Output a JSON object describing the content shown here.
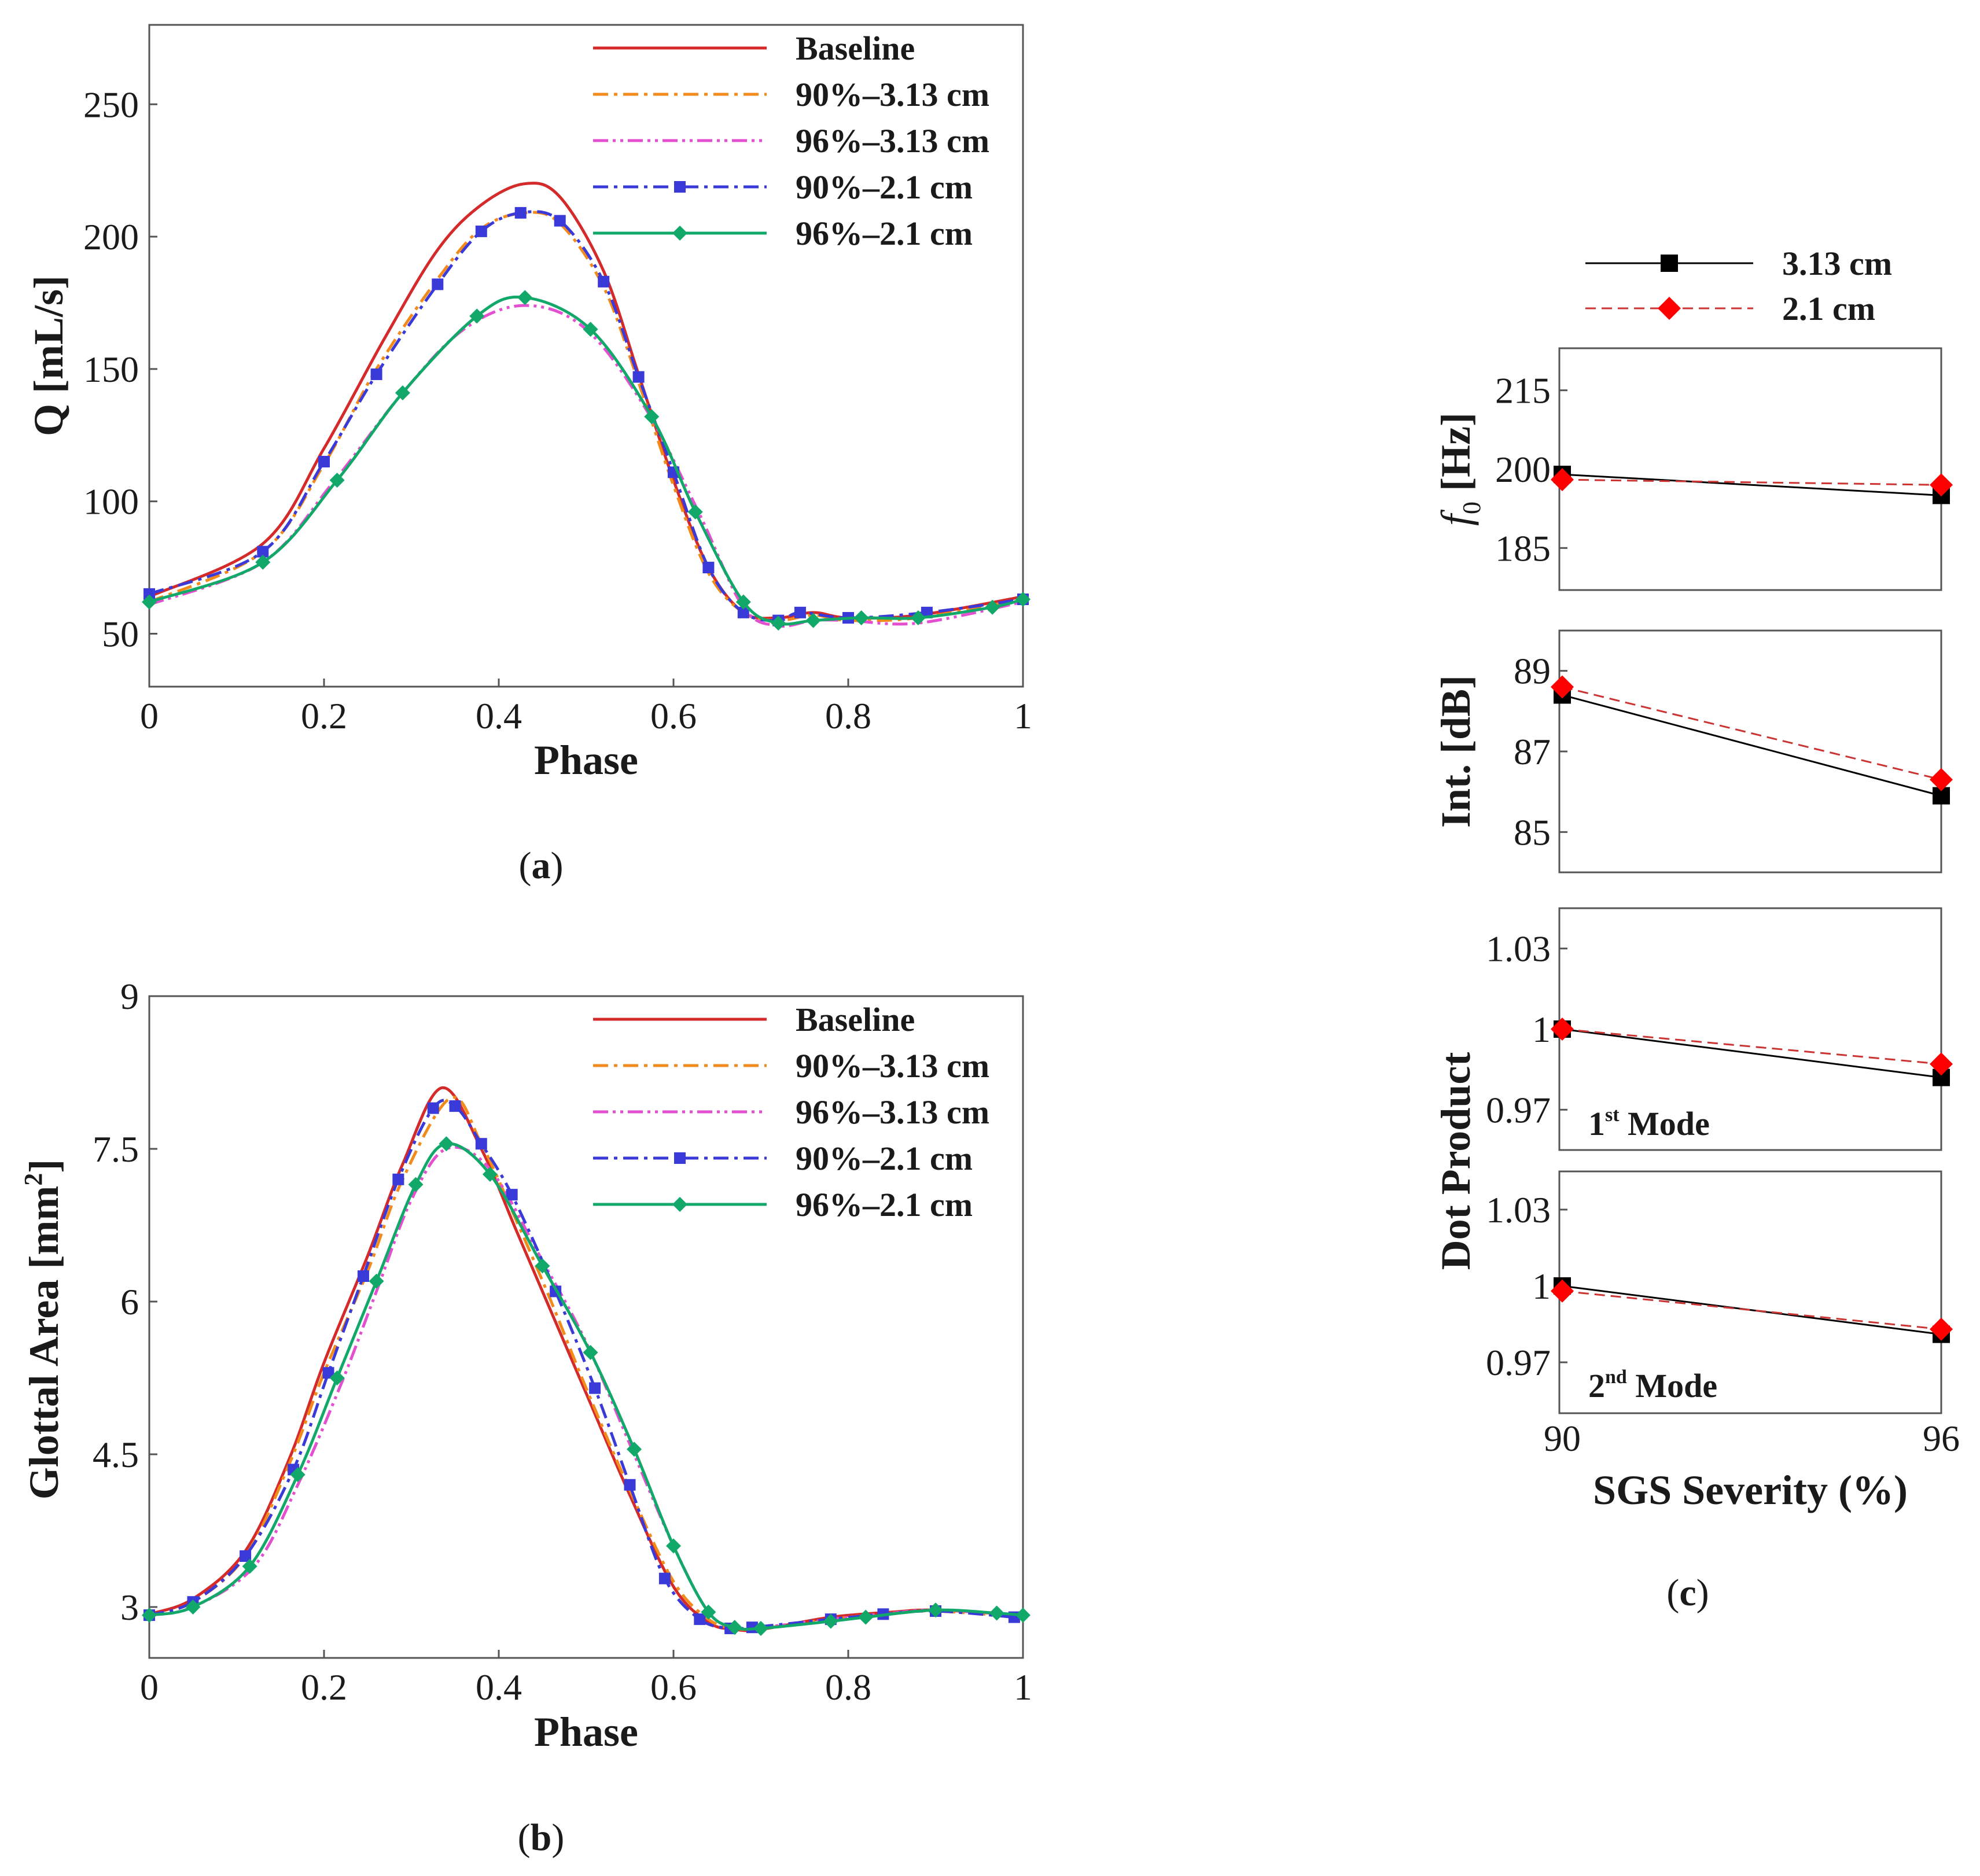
{
  "figure": {
    "captions": {
      "a": {
        "open": "(",
        "letter": "a",
        "close": ")"
      },
      "b": {
        "open": "(",
        "letter": "b",
        "close": ")"
      },
      "c": {
        "open": "(",
        "letter": "c",
        "close": ")"
      }
    }
  },
  "series_styles": [
    {
      "name": "Baseline",
      "color": "#d42a2a",
      "dash": "solid",
      "marker": "none"
    },
    {
      "name": "90%–3.13 cm",
      "color": "#f28a1c",
      "dash": "dashdot",
      "marker": "none"
    },
    {
      "name": "96%–3.13 cm",
      "color": "#e34fd0",
      "dash": "dashdotdot",
      "marker": "none"
    },
    {
      "name": "90%–2.1 cm",
      "color": "#3a3ad8",
      "dash": "dashdot",
      "marker": "square"
    },
    {
      "name": "96%–2.1 cm",
      "color": "#12a86a",
      "dash": "solid",
      "marker": "diamond"
    }
  ],
  "chart_data": [
    {
      "id": "a",
      "type": "line",
      "xlabel": "Phase",
      "ylabel": "Q [mL/s]",
      "xlim": [
        0,
        1
      ],
      "ylim": [
        30,
        280
      ],
      "xticks": [
        0,
        0.2,
        0.4,
        0.6,
        0.8,
        1
      ],
      "xtick_labels": [
        "0",
        "0.2",
        "0.4",
        "0.6",
        "0.8",
        "1"
      ],
      "yticks": [
        50,
        100,
        150,
        200,
        250
      ],
      "ytick_labels": [
        "50",
        "100",
        "150",
        "200",
        "250"
      ],
      "legend": [
        "Baseline",
        "90%–3.13 cm",
        "96%–3.13 cm",
        "90%–2.1 cm",
        "96%–2.1 cm"
      ],
      "series": [
        {
          "name": "Baseline",
          "x": [
            0,
            0.13,
            0.2,
            0.27,
            0.33,
            0.38,
            0.43,
            0.47,
            0.52,
            0.56,
            0.6,
            0.64,
            0.68,
            0.72,
            0.76,
            0.8,
            0.88,
            1
          ],
          "y": [
            64,
            84,
            120,
            162,
            195,
            212,
            220,
            215,
            187,
            148,
            108,
            75,
            58,
            56,
            58,
            56,
            57,
            64
          ]
        },
        {
          "name": "90%–3.13 cm",
          "x": [
            0,
            0.13,
            0.2,
            0.26,
            0.33,
            0.38,
            0.43,
            0.47,
            0.52,
            0.56,
            0.6,
            0.64,
            0.68,
            0.72,
            0.76,
            0.8,
            0.88,
            1
          ],
          "y": [
            62,
            81,
            114,
            150,
            184,
            203,
            209,
            205,
            181,
            145,
            106,
            73,
            58,
            55,
            57,
            55,
            56,
            63
          ]
        },
        {
          "name": "96%–3.13 cm",
          "x": [
            0,
            0.13,
            0.21,
            0.29,
            0.36,
            0.43,
            0.5,
            0.57,
            0.63,
            0.68,
            0.72,
            0.76,
            0.8,
            0.88,
            1
          ],
          "y": [
            61,
            77,
            107,
            141,
            165,
            174,
            165,
            134,
            95,
            60,
            53,
            55,
            55,
            54,
            62
          ]
        },
        {
          "name": "90%–2.1 cm",
          "x": [
            0,
            0.13,
            0.2,
            0.26,
            0.33,
            0.38,
            0.425,
            0.47,
            0.52,
            0.56,
            0.6,
            0.64,
            0.68,
            0.72,
            0.745,
            0.8,
            0.89,
            1
          ],
          "y": [
            65,
            81,
            115,
            148,
            182,
            202,
            209,
            206,
            183,
            147,
            111,
            75,
            58,
            55,
            58,
            56,
            58,
            63
          ]
        },
        {
          "name": "96%–2.1 cm",
          "x": [
            0,
            0.13,
            0.215,
            0.29,
            0.375,
            0.43,
            0.505,
            0.575,
            0.625,
            0.68,
            0.72,
            0.76,
            0.815,
            0.88,
            0.965,
            1
          ],
          "y": [
            62,
            77,
            108,
            141,
            170,
            177,
            165,
            132,
            96,
            62,
            54,
            55,
            56,
            56,
            60,
            63
          ]
        }
      ]
    },
    {
      "id": "b",
      "type": "line",
      "xlabel": "Phase",
      "ylabel": "Glottal Area [mm",
      "ylabel_sup": "2",
      "ylabel_end": "]",
      "xlim": [
        0,
        1
      ],
      "ylim": [
        2.5,
        9
      ],
      "xticks": [
        0,
        0.2,
        0.4,
        0.6,
        0.8,
        1
      ],
      "xtick_labels": [
        "0",
        "0.2",
        "0.4",
        "0.6",
        "0.8",
        "1"
      ],
      "yticks": [
        3,
        4.5,
        6,
        7.5,
        9
      ],
      "ytick_labels": [
        "3",
        "4.5",
        "6",
        "7.5",
        "9"
      ],
      "legend": [
        "Baseline",
        "90%–3.13 cm",
        "96%–3.13 cm",
        "90%–2.1 cm",
        "96%–2.1 cm"
      ],
      "series": [
        {
          "name": "Baseline",
          "x": [
            0,
            0.05,
            0.11,
            0.16,
            0.2,
            0.25,
            0.29,
            0.335,
            0.38,
            0.42,
            0.46,
            0.5,
            0.55,
            0.6,
            0.64,
            0.67,
            0.7,
            0.78,
            0.85,
            0.9,
            1
          ],
          "y": [
            2.93,
            3.08,
            3.55,
            4.45,
            5.4,
            6.45,
            7.35,
            8.1,
            7.5,
            6.7,
            5.9,
            5.1,
            4.1,
            3.2,
            2.85,
            2.78,
            2.78,
            2.9,
            2.95,
            2.97,
            2.92
          ]
        },
        {
          "name": "90%–3.13 cm",
          "x": [
            0,
            0.05,
            0.11,
            0.16,
            0.2,
            0.25,
            0.29,
            0.345,
            0.38,
            0.42,
            0.46,
            0.5,
            0.55,
            0.6,
            0.64,
            0.67,
            0.7,
            0.78,
            0.85,
            0.9,
            1
          ],
          "y": [
            2.92,
            3.05,
            3.5,
            4.4,
            5.3,
            6.3,
            7.2,
            8.0,
            7.55,
            6.8,
            6.0,
            5.15,
            4.15,
            3.25,
            2.88,
            2.79,
            2.79,
            2.88,
            2.94,
            2.96,
            2.9
          ]
        },
        {
          "name": "96%–3.13 cm",
          "x": [
            0,
            0.05,
            0.12,
            0.17,
            0.22,
            0.26,
            0.3,
            0.34,
            0.39,
            0.45,
            0.5,
            0.55,
            0.6,
            0.64,
            0.67,
            0.7,
            0.78,
            0.85,
            0.9,
            1
          ],
          "y": [
            2.92,
            3.0,
            3.4,
            4.2,
            5.2,
            6.1,
            7.0,
            7.5,
            7.3,
            6.4,
            5.6,
            4.6,
            3.6,
            2.95,
            2.8,
            2.8,
            2.88,
            2.94,
            2.97,
            2.92
          ]
        },
        {
          "name": "90%–2.1 cm",
          "x": [
            0,
            0.05,
            0.11,
            0.165,
            0.205,
            0.245,
            0.285,
            0.325,
            0.35,
            0.38,
            0.415,
            0.465,
            0.51,
            0.55,
            0.59,
            0.63,
            0.665,
            0.69,
            0.78,
            0.84,
            0.9,
            0.99
          ],
          "y": [
            2.92,
            3.05,
            3.5,
            4.35,
            5.3,
            6.25,
            7.2,
            7.9,
            7.92,
            7.55,
            7.05,
            6.1,
            5.15,
            4.2,
            3.28,
            2.88,
            2.79,
            2.8,
            2.88,
            2.93,
            2.96,
            2.9
          ]
        },
        {
          "name": "96%–2.1 cm",
          "x": [
            0,
            0.05,
            0.115,
            0.17,
            0.215,
            0.26,
            0.305,
            0.34,
            0.39,
            0.45,
            0.505,
            0.555,
            0.6,
            0.64,
            0.67,
            0.7,
            0.78,
            0.82,
            0.9,
            0.97,
            1
          ],
          "y": [
            2.92,
            3.0,
            3.4,
            4.3,
            5.25,
            6.2,
            7.15,
            7.55,
            7.25,
            6.35,
            5.5,
            4.55,
            3.6,
            2.95,
            2.8,
            2.79,
            2.86,
            2.9,
            2.97,
            2.94,
            2.92
          ]
        }
      ]
    },
    {
      "id": "c",
      "type": "line",
      "xlabel": "SGS Severity (%)",
      "x_values": [
        90,
        96
      ],
      "xtick_labels": [
        "90",
        "96"
      ],
      "legend": [
        "3.13 cm",
        "2.1 cm"
      ],
      "series_styles": [
        {
          "name": "3.13 cm",
          "color": "#000000",
          "dash": "solid",
          "marker": "square"
        },
        {
          "name": "2.1 cm",
          "color": "#cc3333",
          "dash": "dashed",
          "marker": "diamond",
          "marker_color": "#ff0000"
        }
      ],
      "shared_ylabel": "Dot Product",
      "panels": [
        {
          "ylabel_italic": "f",
          "ylabel_sub": "0",
          "ylabel_rest": " [Hz]",
          "ylim": [
            177,
            223
          ],
          "yticks": [
            185,
            200,
            215
          ],
          "ytick_labels": [
            "185",
            "200",
            "215"
          ],
          "series": [
            {
              "name": "3.13 cm",
              "y": [
                199,
                195
              ]
            },
            {
              "name": "2.1 cm",
              "y": [
                198,
                197
              ]
            }
          ]
        },
        {
          "ylabel": "Int. [dB]",
          "ylim": [
            84,
            90
          ],
          "yticks": [
            85,
            87,
            89
          ],
          "ytick_labels": [
            "85",
            "87",
            "89"
          ],
          "series": [
            {
              "name": "3.13 cm",
              "y": [
                88.4,
                85.9
              ]
            },
            {
              "name": "2.1 cm",
              "y": [
                88.6,
                86.3
              ]
            }
          ]
        },
        {
          "annotation": "1",
          "annotation_sup": "st",
          "annotation_rest": " Mode",
          "ylim": [
            0.955,
            1.045
          ],
          "yticks": [
            0.97,
            1.0,
            1.03
          ],
          "ytick_labels": [
            "0.97",
            "1",
            "1.03"
          ],
          "series": [
            {
              "name": "3.13 cm",
              "y": [
                1.0,
                0.982
              ]
            },
            {
              "name": "2.1 cm",
              "y": [
                1.0,
                0.987
              ]
            }
          ]
        },
        {
          "annotation": "2",
          "annotation_sup": "nd",
          "annotation_rest": " Mode",
          "ylim": [
            0.95,
            1.045
          ],
          "yticks": [
            0.97,
            1.0,
            1.03
          ],
          "ytick_labels": [
            "0.97",
            "1",
            "1.03"
          ],
          "series": [
            {
              "name": "3.13 cm",
              "y": [
                1.0,
                0.981
              ]
            },
            {
              "name": "2.1 cm",
              "y": [
                0.998,
                0.983
              ]
            }
          ]
        }
      ]
    }
  ]
}
